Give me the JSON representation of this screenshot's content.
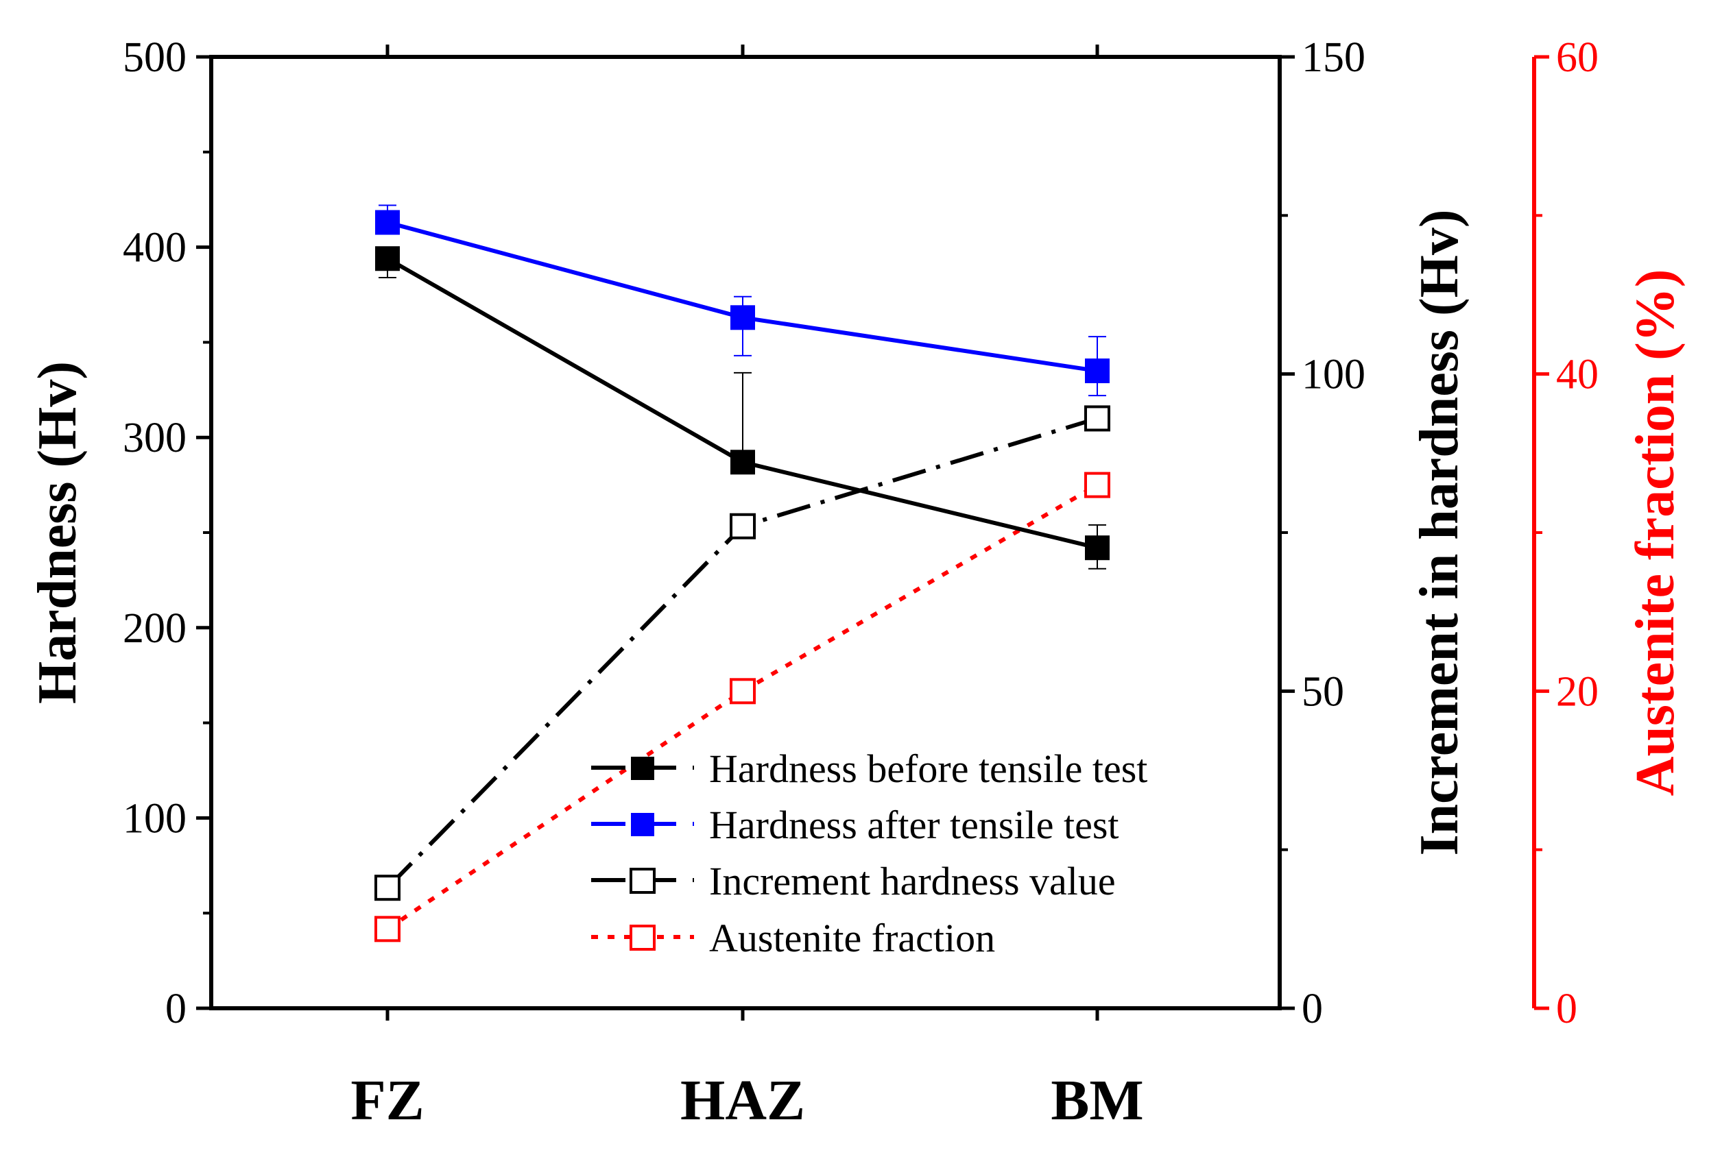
{
  "chart_data": {
    "type": "line",
    "categories": [
      "FZ",
      "HAZ",
      "BM"
    ],
    "left_axis": {
      "title": "Hardness (Hv)",
      "ylim": [
        0,
        500
      ],
      "ticks": [
        0,
        100,
        200,
        300,
        400,
        500
      ],
      "tick_labels": [
        "0",
        "100",
        "200",
        "300",
        "400",
        "500"
      ],
      "color": "#000000"
    },
    "right_axis": {
      "title": "Increment in hardness (Hv)",
      "ylim": [
        0,
        150
      ],
      "ticks": [
        0,
        50,
        100,
        150
      ],
      "tick_labels": [
        "0",
        "50",
        "100",
        "150"
      ],
      "color": "#000000"
    },
    "far_right_axis": {
      "title": "Austenite fraction (%)",
      "ylim": [
        0,
        60
      ],
      "ticks": [
        0,
        20,
        40,
        60
      ],
      "tick_labels": [
        "0",
        "20",
        "40",
        "60"
      ],
      "color": "#ff0000"
    },
    "series": [
      {
        "name": "Hardness before tensile test",
        "axis": "left",
        "values": [
          394,
          287,
          242
        ],
        "errors_up": [
          6,
          47,
          12
        ],
        "errors_down": [
          10,
          0,
          11
        ],
        "color": "#000000",
        "marker": "filled-square",
        "line": "solid"
      },
      {
        "name": "Hardness after tensile test",
        "axis": "left",
        "values": [
          413,
          363,
          335
        ],
        "errors_up": [
          9,
          11,
          18
        ],
        "errors_down": [
          0,
          20,
          13
        ],
        "color": "#0000ff",
        "marker": "filled-square",
        "line": "solid"
      },
      {
        "name": "Increment hardness value",
        "axis": "right",
        "values": [
          19,
          76,
          93
        ],
        "color": "#000000",
        "marker": "open-square",
        "line": "dash-dot"
      },
      {
        "name": "Austenite fraction",
        "axis": "far_right",
        "values": [
          5,
          20,
          33
        ],
        "color": "#ff0000",
        "marker": "open-square",
        "line": "dotted"
      }
    ]
  }
}
